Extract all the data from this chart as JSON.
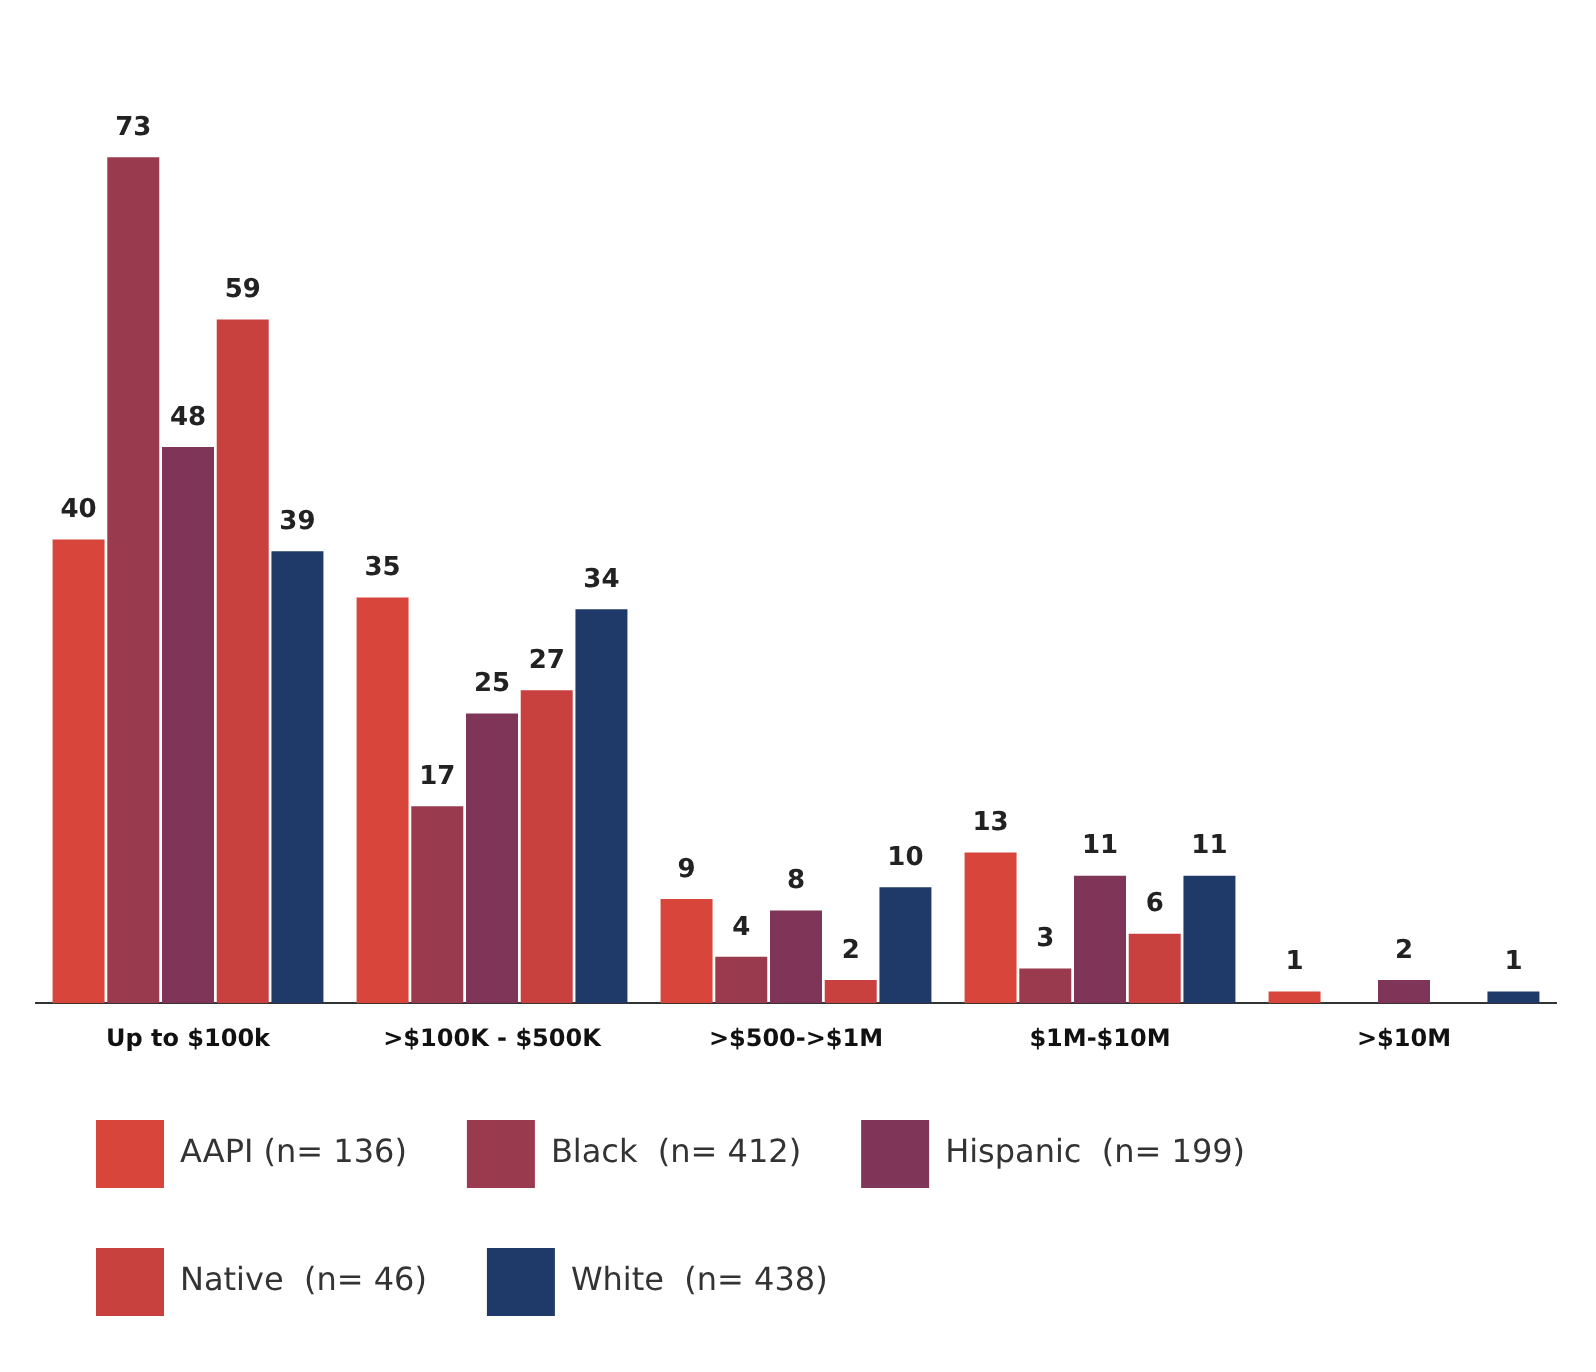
{
  "chart_data": {
    "type": "bar",
    "categories": [
      "Up to $100k",
      ">$100K - $500K",
      ">$500->$1M",
      "$1M-$10M",
      ">$10M"
    ],
    "series": [
      {
        "name": "AAPI (n= 136)",
        "color": "#d8453a",
        "values": [
          40,
          35,
          9,
          13,
          1
        ]
      },
      {
        "name": "Black  (n= 412)",
        "color": "#9a3a4e",
        "values": [
          73,
          17,
          4,
          3,
          null
        ]
      },
      {
        "name": "Hispanic  (n= 199)",
        "color": "#7e3558",
        "values": [
          48,
          25,
          8,
          11,
          2
        ]
      },
      {
        "name": "Native  (n= 46)",
        "color": "#c9413f",
        "values": [
          59,
          27,
          2,
          6,
          null
        ]
      },
      {
        "name": "White  (n= 438)",
        "color": "#1f3a68",
        "values": [
          39,
          34,
          10,
          11,
          1
        ]
      }
    ],
    "data_labels": true,
    "legend": "bottom",
    "grid": false
  }
}
